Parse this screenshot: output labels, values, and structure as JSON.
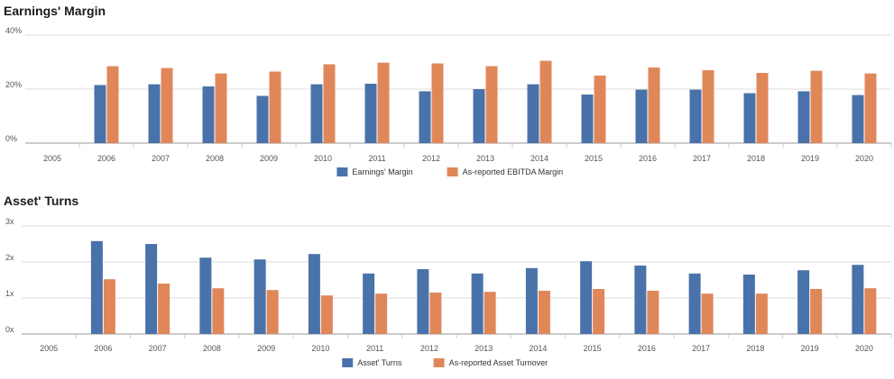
{
  "chart_data": [
    {
      "type": "bar",
      "title": "Earnings' Margin",
      "categories": [
        "2005",
        "2006",
        "2007",
        "2008",
        "2009",
        "2010",
        "2011",
        "2012",
        "2013",
        "2014",
        "2015",
        "2016",
        "2017",
        "2018",
        "2019",
        "2020"
      ],
      "series": [
        {
          "name": "Earnings' Margin",
          "color": "#4a72aa",
          "values": [
            null,
            21.5,
            21.8,
            21.0,
            17.5,
            21.8,
            22.0,
            19.2,
            20.0,
            21.8,
            18.0,
            19.8,
            19.8,
            18.5,
            19.2,
            17.8
          ]
        },
        {
          "name": "As-reported EBITDA Margin",
          "color": "#e0875a",
          "values": [
            null,
            28.5,
            27.8,
            25.8,
            26.5,
            29.2,
            29.8,
            29.5,
            28.5,
            30.5,
            25.0,
            28.0,
            27.0,
            26.0,
            26.8,
            25.8
          ]
        }
      ],
      "yticks": [
        "0%",
        "20%",
        "40%"
      ],
      "ylim": [
        0,
        40
      ],
      "legend_position": "bottom"
    },
    {
      "type": "bar",
      "title": "Asset' Turns",
      "categories": [
        "2005",
        "2006",
        "2007",
        "2008",
        "2009",
        "2010",
        "2011",
        "2012",
        "2013",
        "2014",
        "2015",
        "2016",
        "2017",
        "2018",
        "2019",
        "2020"
      ],
      "series": [
        {
          "name": "Asset' Turns",
          "color": "#4a72aa",
          "values": [
            null,
            2.58,
            2.5,
            2.12,
            2.07,
            2.22,
            1.68,
            1.8,
            1.68,
            1.83,
            2.02,
            1.9,
            1.68,
            1.65,
            1.77,
            1.92
          ]
        },
        {
          "name": "As-reported Asset Turnover",
          "color": "#e0875a",
          "values": [
            null,
            1.52,
            1.4,
            1.27,
            1.22,
            1.07,
            1.12,
            1.15,
            1.17,
            1.2,
            1.25,
            1.2,
            1.12,
            1.12,
            1.25,
            1.27
          ]
        }
      ],
      "yticks": [
        "0x",
        "1x",
        "2x",
        "3x"
      ],
      "ylim": [
        0,
        3
      ],
      "legend_position": "bottom"
    }
  ]
}
